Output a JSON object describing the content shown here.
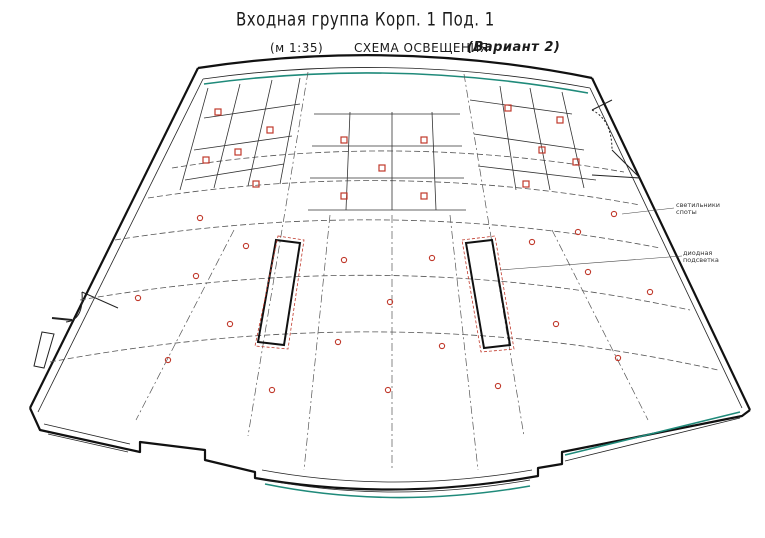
{
  "title": {
    "line1": "Входная группа  Корп. 1  Под. 1",
    "scale": "(м 1:35)",
    "subtitle": "СХЕМА ОСВЕЩЕНИЯ",
    "variant": "(Вариант 2)"
  },
  "notes": {
    "spots_line1": "светильники",
    "spots_line2": "споты",
    "led_line1": "диодная",
    "led_line2": "подсветка"
  },
  "colors": {
    "wall": "#111111",
    "accent_wall": "#1f8a7a",
    "fixture": "#c0392b",
    "guide": "#555555"
  },
  "icons": {
    "square_fixture": "square-ceiling-light-icon",
    "spot_fixture": "round-spot-light-icon",
    "led_strip": "led-strip-icon"
  }
}
